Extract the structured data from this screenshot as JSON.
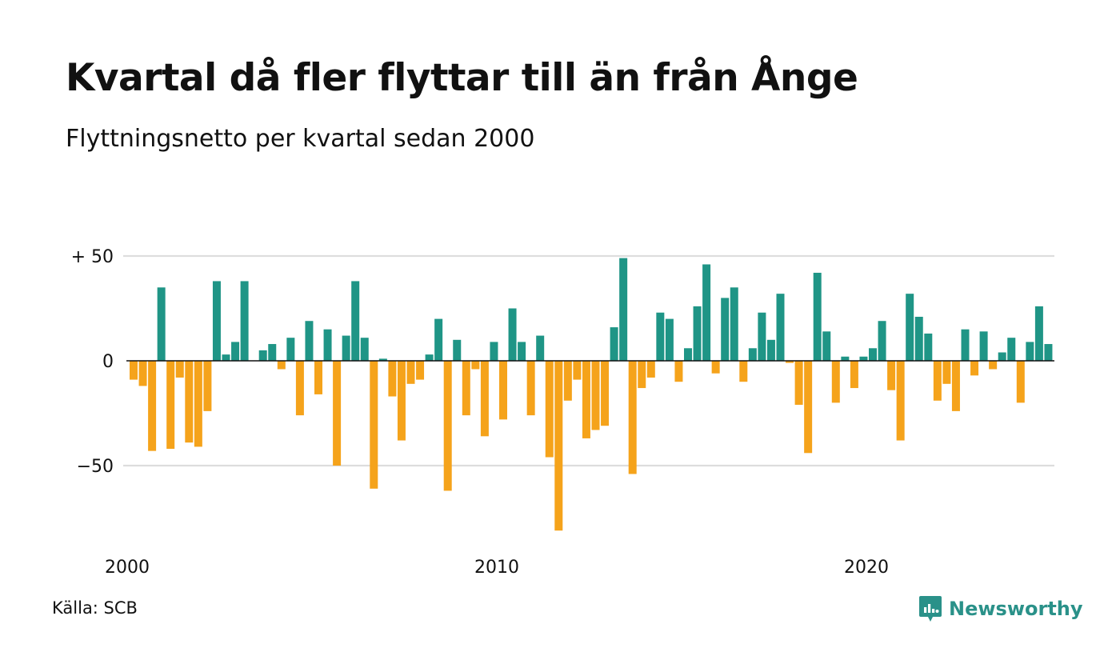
{
  "title": "Kvartal då fler flyttar till än från Ånge",
  "subtitle": "Flyttningsnetto per kvartal sedan 2000",
  "source": "Källa: SCB",
  "brand": {
    "name": "Newsworthy",
    "icon": "newsworthy-logo-icon",
    "color": "#2a9189"
  },
  "chart_data": {
    "type": "bar",
    "title": "Kvartal då fler flyttar till än från Ånge",
    "subtitle": "Flyttningsnetto per kvartal sedan 2000",
    "x_unit": "quarter",
    "x_start": "2000 Q1",
    "x_ticks": [
      "2000",
      "2010",
      "2020"
    ],
    "y_ticks": [
      {
        "value": 50,
        "label": "+ 50"
      },
      {
        "value": 0,
        "label": "0"
      },
      {
        "value": -50,
        "label": "−50"
      }
    ],
    "ylim": [
      -85,
      52
    ],
    "grid": true,
    "legend": "none",
    "colors": {
      "positive": "#1f9586",
      "negative": "#f5a31b",
      "grid": "#dddddd",
      "axis": "#111111"
    },
    "values": [
      -9,
      -12,
      -43,
      35,
      -42,
      -8,
      -39,
      -41,
      -24,
      38,
      3,
      9,
      38,
      0,
      5,
      8,
      -4,
      11,
      -26,
      19,
      -16,
      15,
      -50,
      12,
      38,
      11,
      -61,
      1,
      -17,
      -38,
      -11,
      -9,
      3,
      20,
      -62,
      10,
      -26,
      -4,
      -36,
      9,
      -28,
      25,
      9,
      -26,
      12,
      -46,
      -81,
      -19,
      -9,
      -37,
      -33,
      -31,
      16,
      49,
      -54,
      -13,
      -8,
      23,
      20,
      -10,
      6,
      26,
      46,
      -6,
      30,
      35,
      -10,
      6,
      23,
      10,
      32,
      -1,
      -21,
      -44,
      42,
      14,
      -20,
      2,
      -13,
      2,
      6,
      19,
      -14,
      -38,
      32,
      21,
      13,
      -19,
      -11,
      -24,
      15,
      -7,
      14,
      -4,
      4,
      11,
      -20,
      9,
      26,
      8
    ]
  }
}
